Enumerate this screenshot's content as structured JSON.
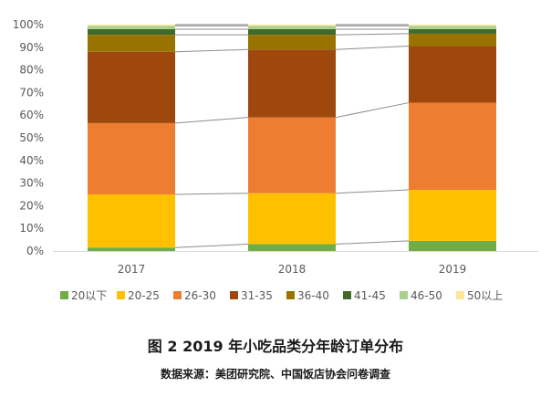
{
  "chart_data": {
    "type": "bar",
    "stacked": true,
    "percent": true,
    "categories": [
      "2017",
      "2018",
      "2019"
    ],
    "series": [
      {
        "name": "20以下",
        "color": "#70AD47",
        "values": [
          1.5,
          3,
          4.5
        ]
      },
      {
        "name": "20-25",
        "color": "#FFC000",
        "values": [
          23.5,
          22.5,
          22.5
        ]
      },
      {
        "name": "26-30",
        "color": "#ED7D31",
        "values": [
          31.5,
          33.5,
          38.5
        ]
      },
      {
        "name": "31-35",
        "color": "#9E480E",
        "values": [
          31.5,
          30,
          25
        ]
      },
      {
        "name": "36-40",
        "color": "#997300",
        "values": [
          7.5,
          6.5,
          5.5
        ]
      },
      {
        "name": "41-45",
        "color": "#43682B",
        "values": [
          2.5,
          2.5,
          2
        ]
      },
      {
        "name": "46-50",
        "color": "#A9D18E",
        "values": [
          1.5,
          1.5,
          1.5
        ]
      },
      {
        "name": "50以上",
        "color": "#FFE699",
        "values": [
          0.5,
          0.5,
          0.5
        ]
      }
    ],
    "yticks": [
      "0%",
      "10%",
      "20%",
      "30%",
      "40%",
      "50%",
      "60%",
      "70%",
      "80%",
      "90%",
      "100%"
    ],
    "ylim": [
      0,
      100
    ],
    "legend_position": "bottom",
    "series_lines": true,
    "grid": false,
    "title": "图 2    2019 年小吃品类分年龄订单分布",
    "xlabel": "",
    "ylabel": ""
  },
  "caption": {
    "title": "图 2    2019 年小吃品类分年龄订单分布",
    "source": "数据来源：美团研究院、中国饭店协会问卷调查"
  }
}
